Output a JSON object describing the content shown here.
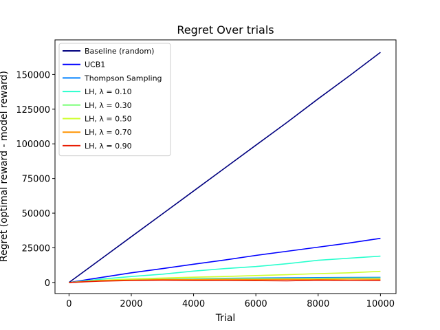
{
  "chart_data": {
    "type": "line",
    "title": "Regret Over trials",
    "xlabel": "Trial",
    "ylabel": "Regret (optimal reward - model reward)",
    "xlim": [
      -450,
      10500
    ],
    "ylim": [
      -8000,
      175000
    ],
    "xticks": [
      0,
      2000,
      4000,
      6000,
      8000,
      10000
    ],
    "yticks": [
      0,
      25000,
      50000,
      75000,
      100000,
      125000,
      150000
    ],
    "grid": false,
    "legend_position": "top-left",
    "series": [
      {
        "name": "Baseline (random)",
        "color": "#00007f",
        "x": [
          0,
          1000,
          2000,
          3000,
          4000,
          5000,
          6000,
          7000,
          8000,
          9000,
          10000
        ],
        "y": [
          0,
          16500,
          33000,
          49500,
          66000,
          82500,
          99000,
          115500,
          132500,
          149000,
          166000
        ]
      },
      {
        "name": "UCB1",
        "color": "#0000ff",
        "x": [
          0,
          1000,
          2000,
          3000,
          4000,
          5000,
          6000,
          7000,
          8000,
          9000,
          10000
        ],
        "y": [
          0,
          3500,
          7000,
          10000,
          13200,
          16200,
          19500,
          22500,
          25500,
          28500,
          31800
        ]
      },
      {
        "name": "Thompson Sampling",
        "color": "#0080ff",
        "x": [
          0,
          1000,
          2000,
          3000,
          4000,
          5000,
          6000,
          7000,
          8000,
          9000,
          10000
        ],
        "y": [
          0,
          1200,
          1800,
          2300,
          2700,
          3000,
          3200,
          3400,
          3500,
          3600,
          3700
        ]
      },
      {
        "name": "LH, λ = 0.10",
        "color": "#29ffce",
        "x": [
          0,
          1000,
          2000,
          3000,
          4000,
          5000,
          6000,
          7000,
          8000,
          9000,
          10000
        ],
        "y": [
          0,
          2300,
          4300,
          6000,
          8200,
          10000,
          11500,
          13500,
          16000,
          17500,
          19000
        ]
      },
      {
        "name": "LH, λ = 0.30",
        "color": "#7dff7a",
        "x": [
          0,
          1000,
          2000,
          3000,
          4000,
          5000,
          6000,
          7000,
          8000,
          9000,
          10000
        ],
        "y": [
          0,
          1200,
          1800,
          2300,
          2500,
          2700,
          2800,
          2900,
          3000,
          3100,
          3200
        ]
      },
      {
        "name": "LH, λ = 0.50",
        "color": "#ceff29",
        "x": [
          0,
          1000,
          2000,
          3000,
          4000,
          5000,
          6000,
          7000,
          8000,
          9000,
          10000
        ],
        "y": [
          0,
          1500,
          2500,
          3200,
          3800,
          4300,
          5000,
          5600,
          6400,
          7000,
          8000
        ]
      },
      {
        "name": "LH, λ = 0.70",
        "color": "#ff9400",
        "x": [
          0,
          1000,
          2000,
          3000,
          4000,
          5000,
          6000,
          7000,
          8000,
          9000,
          10000
        ],
        "y": [
          0,
          1200,
          1700,
          2100,
          2000,
          2200,
          2100,
          2300,
          2200,
          2400,
          2300
        ]
      },
      {
        "name": "LH, λ = 0.90",
        "color": "#e81a00",
        "x": [
          0,
          1000,
          2000,
          3000,
          4000,
          5000,
          6000,
          7000,
          8000,
          9000,
          10000
        ],
        "y": [
          0,
          1000,
          1400,
          1600,
          1500,
          1400,
          1300,
          1200,
          1600,
          1400,
          1300
        ]
      }
    ]
  }
}
